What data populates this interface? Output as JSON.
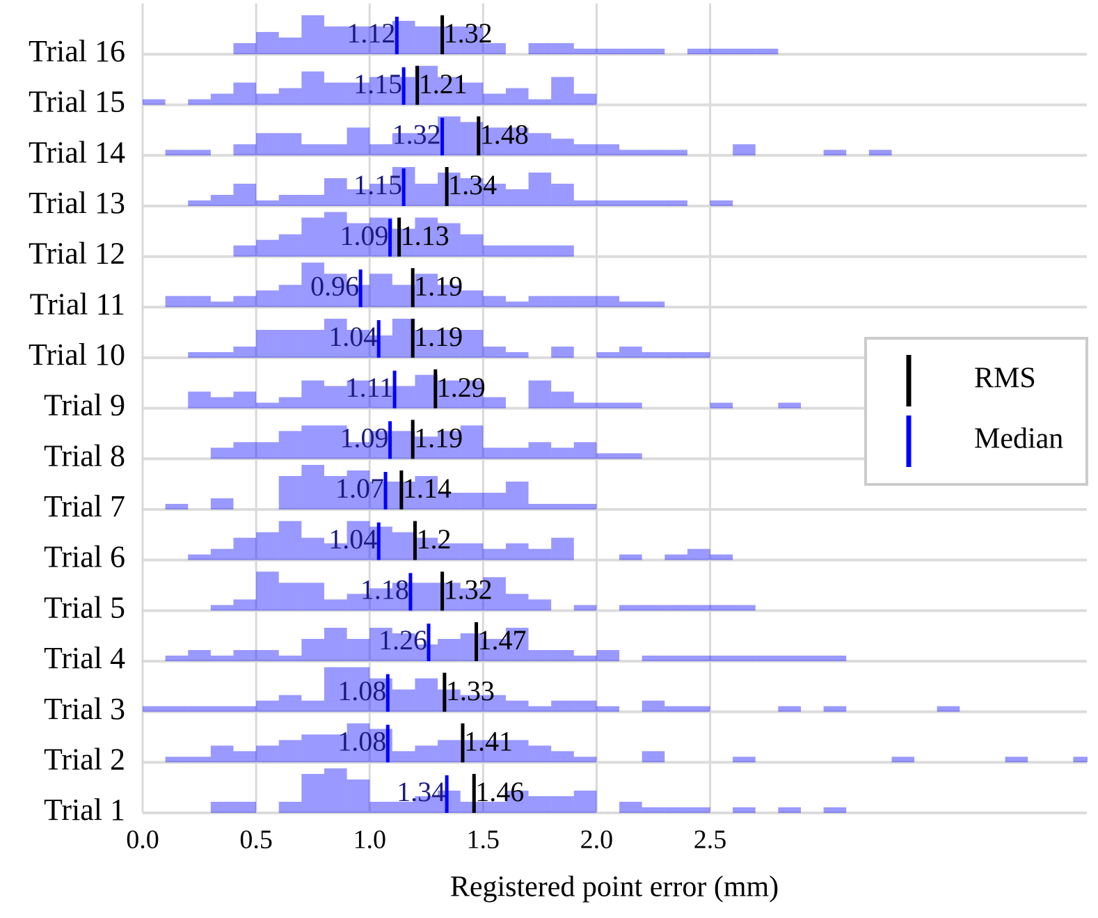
{
  "chart_data": {
    "type": "histogram",
    "xlabel": "Registered point error (mm)",
    "xlim": [
      0,
      4.16
    ],
    "xticks": [
      {
        "value": 0,
        "label": "0.0"
      },
      {
        "value": 0.5,
        "label": "0.5"
      },
      {
        "value": 1,
        "label": "1.0"
      },
      {
        "value": 1.5,
        "label": "1.5"
      },
      {
        "value": 2,
        "label": "2.0"
      },
      {
        "value": 2.5,
        "label": "2.5"
      }
    ],
    "grid": true,
    "color": "#0000ff",
    "alpha": 0.4,
    "legend": "right",
    "markers": [
      {
        "name": "RMS",
        "color": "#000000"
      },
      {
        "name": "Median",
        "color": "#0000ff"
      }
    ],
    "bins": [
      0,
      0.1,
      0.2,
      0.3,
      0.4,
      0.5,
      0.6,
      0.7,
      0.8,
      0.9,
      1.0,
      1.1,
      1.2,
      1.3,
      1.4,
      1.5,
      1.6,
      1.7,
      1.8,
      1.9,
      2.0,
      2.1,
      2.2,
      2.3,
      2.4,
      2.5,
      2.6,
      2.7,
      2.8,
      2.9,
      3.0,
      3.1,
      3.2,
      3.3,
      3.4,
      3.5,
      3.6,
      3.7,
      3.8,
      3.9,
      4.0,
      4.1,
      4.2
    ],
    "series": [
      {
        "name": "Trial 1",
        "median": 1.34,
        "rms": 1.46,
        "values": [
          0,
          0,
          0,
          2,
          2,
          0,
          2,
          7,
          8,
          6,
          2,
          2,
          3,
          4,
          2,
          2,
          4,
          3,
          3,
          4,
          0,
          2,
          1,
          1,
          1,
          0,
          1,
          0,
          1,
          0,
          1,
          0,
          0,
          0,
          0,
          0,
          0,
          0,
          0,
          0,
          0,
          0
        ]
      },
      {
        "name": "Trial 2",
        "median": 1.08,
        "rms": 1.41,
        "values": [
          0,
          1,
          1,
          3,
          2,
          3,
          4,
          5,
          5,
          7,
          6,
          2,
          3,
          4,
          4,
          4,
          4,
          3,
          2,
          1,
          0,
          0,
          2,
          0,
          0,
          0,
          1,
          0,
          0,
          0,
          0,
          0,
          0,
          1,
          0,
          0,
          0,
          0,
          1,
          0,
          0,
          1
        ]
      },
      {
        "name": "Trial 3",
        "median": 1.08,
        "rms": 1.33,
        "values": [
          1,
          1,
          1,
          1,
          1,
          2,
          3,
          2,
          8,
          8,
          6,
          4,
          6,
          4,
          3,
          3,
          2,
          1,
          2,
          2,
          1,
          0,
          2,
          1,
          1,
          0,
          0,
          0,
          1,
          0,
          1,
          0,
          0,
          0,
          0,
          1,
          0,
          0,
          0,
          0,
          0,
          0
        ]
      },
      {
        "name": "Trial 4",
        "median": 1.26,
        "rms": 1.47,
        "values": [
          0,
          1,
          2,
          1,
          2,
          2,
          1,
          4,
          6,
          4,
          6,
          5,
          3,
          4,
          5,
          4,
          6,
          2,
          2,
          1,
          2,
          0,
          1,
          1,
          1,
          1,
          1,
          1,
          1,
          1,
          1,
          0,
          0,
          0,
          0,
          0,
          0,
          0,
          0,
          0,
          0,
          0
        ]
      },
      {
        "name": "Trial 5",
        "median": 1.18,
        "rms": 1.32,
        "values": [
          0,
          0,
          0,
          1,
          2,
          7,
          5,
          5,
          2,
          3,
          4,
          5,
          5,
          5,
          4,
          6,
          3,
          2,
          0,
          1,
          0,
          1,
          1,
          1,
          1,
          1,
          1,
          0,
          0,
          0,
          0,
          0,
          0,
          0,
          0,
          0,
          0,
          0,
          0,
          0,
          0,
          0
        ]
      },
      {
        "name": "Trial 6",
        "median": 1.04,
        "rms": 1.2,
        "values": [
          0,
          0,
          1,
          2,
          4,
          5,
          7,
          4,
          3,
          7,
          6,
          5,
          4,
          3,
          3,
          2,
          3,
          2,
          4,
          0,
          0,
          1,
          0,
          1,
          2,
          1,
          0,
          0,
          0,
          0,
          0,
          0,
          0,
          0,
          0,
          0,
          0,
          0,
          0,
          0,
          0,
          0
        ]
      },
      {
        "name": "Trial 7",
        "median": 1.07,
        "rms": 1.14,
        "values": [
          0,
          1,
          0,
          2,
          0,
          0,
          6,
          8,
          6,
          7,
          5,
          5,
          6,
          3,
          3,
          3,
          5,
          1,
          1,
          1,
          0,
          0,
          0,
          0,
          0,
          0,
          0,
          0,
          0,
          0,
          0,
          0,
          0,
          0,
          0,
          0,
          0,
          0,
          0,
          0,
          0,
          0
        ]
      },
      {
        "name": "Trial 8",
        "median": 1.09,
        "rms": 1.19,
        "values": [
          0,
          0,
          0,
          2,
          3,
          3,
          5,
          6,
          6,
          3,
          5,
          5,
          4,
          5,
          6,
          2,
          2,
          3,
          2,
          3,
          1,
          1,
          0,
          0,
          0,
          0,
          0,
          0,
          0,
          0,
          0,
          0,
          0,
          0,
          0,
          0,
          0,
          0,
          0,
          0,
          0,
          0
        ]
      },
      {
        "name": "Trial 9",
        "median": 1.11,
        "rms": 1.29,
        "values": [
          0,
          0,
          3,
          2,
          3,
          1,
          2,
          5,
          4,
          5,
          4,
          4,
          6,
          5,
          5,
          2,
          0,
          5,
          3,
          1,
          1,
          1,
          0,
          0,
          0,
          1,
          0,
          0,
          1,
          0,
          0,
          0,
          0,
          0,
          0,
          0,
          0,
          0,
          0,
          0,
          0,
          0
        ]
      },
      {
        "name": "Trial 10",
        "median": 1.04,
        "rms": 1.19,
        "values": [
          0,
          0,
          1,
          1,
          2,
          5,
          5,
          5,
          7,
          5,
          4,
          7,
          5,
          5,
          5,
          2,
          1,
          0,
          2,
          0,
          1,
          2,
          1,
          1,
          1,
          0,
          0,
          0,
          0,
          0,
          0,
          0,
          0,
          0,
          0,
          0,
          0,
          0,
          0,
          0,
          0,
          0
        ]
      },
      {
        "name": "Trial 11",
        "median": 0.96,
        "rms": 1.19,
        "values": [
          0,
          2,
          2,
          1,
          2,
          3,
          4,
          8,
          6,
          4,
          6,
          4,
          6,
          4,
          3,
          2,
          1,
          2,
          2,
          2,
          2,
          1,
          1,
          0,
          0,
          0,
          0,
          0,
          0,
          0,
          0,
          0,
          0,
          0,
          0,
          0,
          0,
          0,
          0,
          0,
          0,
          0
        ]
      },
      {
        "name": "Trial 12",
        "median": 1.09,
        "rms": 1.13,
        "values": [
          0,
          0,
          0,
          0,
          2,
          3,
          4,
          7,
          8,
          6,
          7,
          5,
          7,
          6,
          4,
          2,
          2,
          2,
          2,
          0,
          0,
          0,
          0,
          0,
          0,
          0,
          0,
          0,
          0,
          0,
          0,
          0,
          0,
          0,
          0,
          0,
          0,
          0,
          0,
          0,
          0,
          0
        ]
      },
      {
        "name": "Trial 13",
        "median": 1.15,
        "rms": 1.34,
        "values": [
          0,
          0,
          1,
          2,
          4,
          1,
          2,
          2,
          5,
          3,
          4,
          7,
          4,
          6,
          5,
          4,
          3,
          6,
          4,
          1,
          1,
          1,
          1,
          1,
          0,
          1,
          0,
          0,
          0,
          0,
          0,
          0,
          0,
          0,
          0,
          0,
          0,
          0,
          0,
          0,
          0,
          0
        ]
      },
      {
        "name": "Trial 14",
        "median": 1.32,
        "rms": 1.48,
        "values": [
          0,
          1,
          1,
          0,
          2,
          4,
          4,
          2,
          2,
          5,
          2,
          4,
          4,
          7,
          6,
          5,
          5,
          4,
          3,
          2,
          2,
          1,
          1,
          1,
          0,
          0,
          2,
          0,
          0,
          0,
          1,
          0,
          1,
          0,
          0,
          0,
          0,
          0,
          0,
          0,
          0,
          0
        ]
      },
      {
        "name": "Trial 15",
        "median": 1.15,
        "rms": 1.21,
        "values": [
          1,
          0,
          1,
          2,
          4,
          2,
          3,
          6,
          4,
          4,
          5,
          5,
          7,
          5,
          4,
          2,
          3,
          1,
          5,
          2,
          0,
          0,
          0,
          0,
          0,
          0,
          0,
          0,
          0,
          0,
          0,
          0,
          0,
          0,
          0,
          0,
          0,
          0,
          0,
          0,
          0,
          0
        ]
      },
      {
        "name": "Trial 16",
        "median": 1.12,
        "rms": 1.32,
        "values": [
          0,
          0,
          0,
          0,
          2,
          4,
          3,
          7,
          5,
          5,
          5,
          6,
          5,
          5,
          5,
          2,
          0,
          2,
          2,
          1,
          1,
          1,
          1,
          0,
          1,
          1,
          1,
          1,
          0,
          0,
          0,
          0,
          0,
          0,
          0,
          0,
          0,
          0,
          0,
          0,
          0,
          0
        ]
      }
    ]
  }
}
